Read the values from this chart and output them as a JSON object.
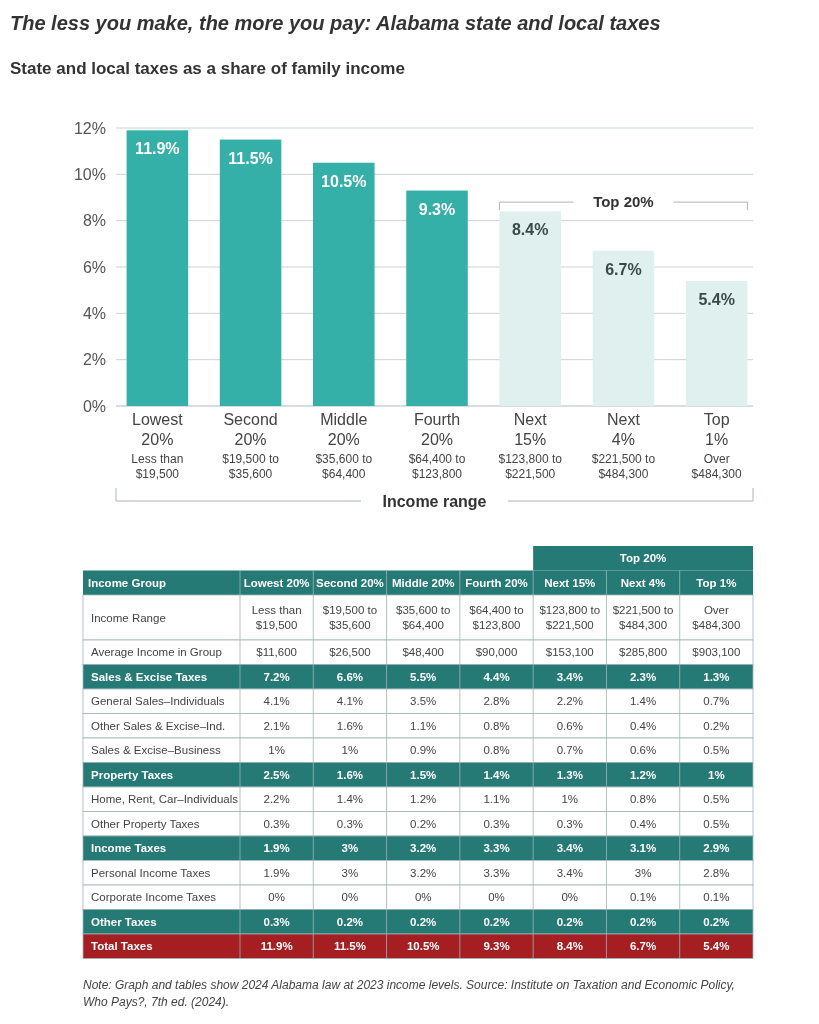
{
  "chart_data": [
    {
      "type": "bar",
      "title": "The less you make, the more you pay: Alabama state and local taxes",
      "subtitle": "State and local taxes as a share of family income",
      "xlabel": "Income range",
      "categories": [
        "Lowest 20%\nLess than $19,500",
        "Second 20%\n$19,500 to $35,600",
        "Middle 20%\n$35,600 to $64,400",
        "Fourth 20%\n$64,400 to $123,800",
        "Next 15%\n$123,800 to $221,500",
        "Next 4%\n$221,500 to $484,300",
        "Top 1%\nOver $484,300"
      ],
      "values": [
        11.9,
        11.5,
        10.5,
        9.3,
        8.4,
        6.7,
        5.4
      ],
      "value_labels": [
        "11.9%",
        "11.5%",
        "10.5%",
        "9.3%",
        "8.4%",
        "6.7%",
        "5.4%"
      ],
      "colors": [
        "#35b0a8",
        "#35b0a8",
        "#35b0a8",
        "#35b0a8",
        "#dff0ee",
        "#dff0ee",
        "#dff0ee"
      ],
      "ylim": [
        0,
        12
      ],
      "yticks": [
        {
          "value": 0,
          "label": "0%"
        },
        {
          "value": 2,
          "label": "2%"
        },
        {
          "value": 4,
          "label": "4%"
        },
        {
          "value": 6,
          "label": "6%"
        },
        {
          "value": 8,
          "label": "8%"
        },
        {
          "value": 10,
          "label": "10%"
        },
        {
          "value": 12,
          "label": "12%"
        }
      ],
      "grid": "y",
      "annotations": [
        "Top 20%"
      ]
    },
    {
      "type": "other",
      "ylabel": "Income Group",
      "categories": [
        "Lowest 20%",
        "Second 20%",
        "Middle 20%",
        "Fourth 20%",
        "Next 15%",
        "Next 4%",
        "Top 1%"
      ],
      "y_categories": [
        "Income Range",
        "Average Income in Group",
        "Sales & Excise Taxes",
        "General Sales–Individuals",
        "Other Sales & Excise–Ind.",
        "Sales & Excise–Business",
        "Property Taxes",
        "Home, Rent, Car–Individuals",
        "Other Property Taxes",
        "Income Taxes",
        "Personal Income Taxes",
        "Corporate Income Taxes",
        "Other Taxes",
        "Total Taxes"
      ],
      "colors": [
        null,
        null,
        "#267a76",
        null,
        null,
        null,
        "#267a76",
        null,
        null,
        "#267a76",
        null,
        null,
        "#267a76",
        "#a51e22"
      ],
      "cell_labels": [
        [
          "Less than $19,500",
          "$19,500 to $35,600",
          "$35,600 to $64,400",
          "$64,400 to $123,800",
          "$123,800 to $221,500",
          "$221,500 to $484,300",
          "Over $484,300"
        ],
        [
          "$11,600",
          "$26,500",
          "$48,400",
          "$90,000",
          "$153,100",
          "$285,800",
          "$903,100"
        ],
        [
          "7.2%",
          "6.6%",
          "5.5%",
          "4.4%",
          "3.4%",
          "2.3%",
          "1.3%"
        ],
        [
          "4.1%",
          "4.1%",
          "3.5%",
          "2.8%",
          "2.2%",
          "1.4%",
          "0.7%"
        ],
        [
          "2.1%",
          "1.6%",
          "1.1%",
          "0.8%",
          "0.6%",
          "0.4%",
          "0.2%"
        ],
        [
          "1%",
          "1%",
          "0.9%",
          "0.8%",
          "0.7%",
          "0.6%",
          "0.5%"
        ],
        [
          "2.5%",
          "1.6%",
          "1.5%",
          "1.4%",
          "1.3%",
          "1.2%",
          "1%"
        ],
        [
          "2.2%",
          "1.4%",
          "1.2%",
          "1.1%",
          "1%",
          "0.8%",
          "0.5%"
        ],
        [
          "0.3%",
          "0.3%",
          "0.2%",
          "0.3%",
          "0.3%",
          "0.4%",
          "0.5%"
        ],
        [
          "1.9%",
          "3%",
          "3.2%",
          "3.3%",
          "3.4%",
          "3.1%",
          "2.9%"
        ],
        [
          "1.9%",
          "3%",
          "3.2%",
          "3.3%",
          "3.4%",
          "3%",
          "2.8%"
        ],
        [
          "0%",
          "0%",
          "0%",
          "0%",
          "0%",
          "0.1%",
          "0.1%"
        ],
        [
          "0.3%",
          "0.2%",
          "0.2%",
          "0.2%",
          "0.2%",
          "0.2%",
          "0.2%"
        ],
        [
          "11.9%",
          "11.5%",
          "10.5%",
          "9.3%",
          "8.4%",
          "6.7%",
          "5.4%"
        ]
      ],
      "annotations": [
        "Top 20%",
        "Note: Graph and tables show 2024 Alabama law at 2023 income levels. Source: Institute on Taxation and Economic Policy, Who Pays?, 7th ed. (2024)."
      ]
    }
  ]
}
